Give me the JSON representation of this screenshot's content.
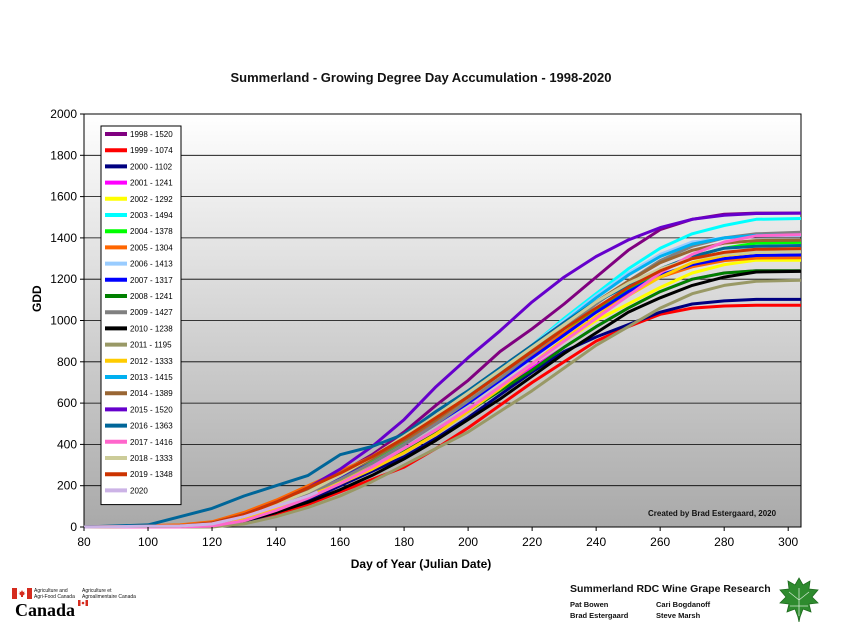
{
  "chart_data": {
    "type": "line",
    "title": "Summerland - Growing Degree Day Accumulation - 1998-2020",
    "xlabel": "Day of Year (Julian Date)",
    "ylabel": "GDD",
    "xlim": [
      80,
      304
    ],
    "ylim": [
      0,
      2000
    ],
    "xticks": [
      80,
      100,
      120,
      140,
      160,
      180,
      200,
      220,
      240,
      260,
      280,
      300
    ],
    "yticks": [
      0,
      200,
      400,
      600,
      800,
      1000,
      1200,
      1400,
      1600,
      1800,
      2000
    ],
    "grid": "horizontal",
    "legend": "top-left",
    "series": [
      {
        "name": "1998 - 1520",
        "color": "#800080",
        "x": [
          80,
          110,
          120,
          130,
          140,
          150,
          160,
          170,
          180,
          190,
          200,
          210,
          220,
          230,
          240,
          250,
          260,
          270,
          280,
          290,
          304
        ],
        "y": [
          0,
          5,
          15,
          55,
          110,
          170,
          260,
          350,
          460,
          590,
          710,
          850,
          960,
          1080,
          1210,
          1340,
          1440,
          1490,
          1515,
          1520,
          1520
        ]
      },
      {
        "name": "1999 - 1074",
        "color": "#ff0000",
        "x": [
          80,
          110,
          120,
          130,
          140,
          150,
          160,
          170,
          180,
          190,
          200,
          210,
          220,
          230,
          240,
          250,
          260,
          270,
          280,
          290,
          304
        ],
        "y": [
          0,
          0,
          5,
          25,
          60,
          110,
          170,
          230,
          290,
          380,
          480,
          590,
          700,
          800,
          900,
          970,
          1030,
          1060,
          1070,
          1074,
          1074
        ]
      },
      {
        "name": "2000 - 1102",
        "color": "#000080",
        "x": [
          80,
          110,
          120,
          130,
          140,
          150,
          160,
          170,
          180,
          190,
          200,
          210,
          220,
          230,
          240,
          250,
          260,
          270,
          280,
          290,
          304
        ],
        "y": [
          0,
          0,
          5,
          25,
          70,
          130,
          200,
          270,
          340,
          430,
          530,
          640,
          750,
          850,
          920,
          980,
          1040,
          1080,
          1095,
          1102,
          1102
        ]
      },
      {
        "name": "2001 - 1241",
        "color": "#ff00ff",
        "x": [
          80,
          110,
          120,
          130,
          140,
          150,
          160,
          170,
          180,
          190,
          200,
          210,
          220,
          230,
          240,
          250,
          260,
          270,
          280,
          290,
          304
        ],
        "y": [
          0,
          5,
          10,
          40,
          90,
          150,
          210,
          290,
          380,
          470,
          570,
          670,
          770,
          870,
          970,
          1060,
          1140,
          1200,
          1230,
          1241,
          1241
        ]
      },
      {
        "name": "2002 - 1292",
        "color": "#ffff00",
        "x": [
          80,
          110,
          120,
          130,
          140,
          150,
          160,
          170,
          180,
          190,
          200,
          210,
          220,
          230,
          240,
          250,
          260,
          270,
          280,
          290,
          304
        ],
        "y": [
          0,
          5,
          12,
          45,
          100,
          160,
          220,
          290,
          370,
          460,
          560,
          670,
          790,
          900,
          1000,
          1080,
          1160,
          1230,
          1270,
          1292,
          1292
        ]
      },
      {
        "name": "2003 - 1494",
        "color": "#00ffff",
        "x": [
          80,
          110,
          120,
          130,
          140,
          150,
          160,
          170,
          180,
          190,
          200,
          210,
          220,
          230,
          240,
          250,
          260,
          270,
          280,
          290,
          304
        ],
        "y": [
          0,
          5,
          20,
          60,
          120,
          180,
          250,
          330,
          420,
          520,
          630,
          750,
          880,
          1010,
          1130,
          1250,
          1350,
          1420,
          1460,
          1490,
          1494
        ]
      },
      {
        "name": "2004 - 1378",
        "color": "#00ff00",
        "x": [
          80,
          110,
          120,
          130,
          140,
          150,
          160,
          170,
          180,
          190,
          200,
          210,
          220,
          230,
          240,
          250,
          260,
          270,
          280,
          290,
          304
        ],
        "y": [
          0,
          5,
          15,
          55,
          110,
          170,
          240,
          320,
          410,
          510,
          610,
          720,
          830,
          940,
          1050,
          1150,
          1240,
          1310,
          1350,
          1375,
          1378
        ]
      },
      {
        "name": "2005 - 1304",
        "color": "#ff6600",
        "x": [
          80,
          110,
          120,
          130,
          140,
          150,
          160,
          170,
          180,
          190,
          200,
          210,
          220,
          230,
          240,
          250,
          260,
          270,
          280,
          290,
          304
        ],
        "y": [
          0,
          10,
          25,
          70,
          130,
          200,
          270,
          340,
          420,
          510,
          610,
          720,
          830,
          940,
          1040,
          1130,
          1210,
          1260,
          1290,
          1302,
          1304
        ]
      },
      {
        "name": "2006 - 1413",
        "color": "#99ccff",
        "x": [
          80,
          110,
          120,
          130,
          140,
          150,
          160,
          170,
          180,
          190,
          200,
          210,
          220,
          230,
          240,
          250,
          260,
          270,
          280,
          290,
          304
        ],
        "y": [
          0,
          5,
          15,
          50,
          110,
          180,
          250,
          330,
          420,
          530,
          640,
          760,
          880,
          1000,
          1120,
          1230,
          1320,
          1380,
          1400,
          1410,
          1413
        ]
      },
      {
        "name": "2007 - 1317",
        "color": "#0000ff",
        "x": [
          80,
          110,
          120,
          130,
          140,
          150,
          160,
          170,
          180,
          190,
          200,
          210,
          220,
          230,
          240,
          250,
          260,
          270,
          280,
          290,
          304
        ],
        "y": [
          0,
          5,
          15,
          55,
          110,
          170,
          240,
          310,
          400,
          500,
          600,
          710,
          820,
          930,
          1040,
          1140,
          1220,
          1270,
          1300,
          1315,
          1317
        ]
      },
      {
        "name": "2008 - 1241",
        "color": "#008000",
        "x": [
          80,
          110,
          120,
          130,
          140,
          150,
          160,
          170,
          180,
          190,
          200,
          210,
          220,
          230,
          240,
          250,
          260,
          270,
          280,
          290,
          304
        ],
        "y": [
          0,
          0,
          5,
          30,
          80,
          140,
          210,
          290,
          370,
          460,
          560,
          660,
          760,
          870,
          970,
          1060,
          1140,
          1200,
          1230,
          1241,
          1241
        ]
      },
      {
        "name": "2009 - 1427",
        "color": "#808080",
        "x": [
          80,
          110,
          120,
          130,
          140,
          150,
          160,
          170,
          180,
          190,
          200,
          210,
          220,
          230,
          240,
          250,
          260,
          270,
          280,
          290,
          304
        ],
        "y": [
          0,
          5,
          15,
          50,
          100,
          160,
          230,
          310,
          400,
          500,
          610,
          720,
          840,
          960,
          1080,
          1190,
          1290,
          1360,
          1400,
          1420,
          1427
        ]
      },
      {
        "name": "2010 - 1238",
        "color": "#000000",
        "x": [
          80,
          110,
          120,
          130,
          140,
          150,
          160,
          170,
          180,
          190,
          200,
          210,
          220,
          230,
          240,
          250,
          260,
          270,
          280,
          290,
          304
        ],
        "y": [
          0,
          0,
          5,
          30,
          70,
          120,
          180,
          250,
          330,
          420,
          520,
          620,
          730,
          840,
          940,
          1040,
          1110,
          1170,
          1210,
          1235,
          1238
        ]
      },
      {
        "name": "2011 - 1195",
        "color": "#999966",
        "x": [
          80,
          110,
          120,
          130,
          140,
          150,
          160,
          170,
          180,
          190,
          200,
          210,
          220,
          230,
          240,
          250,
          260,
          270,
          280,
          290,
          304
        ],
        "y": [
          0,
          0,
          0,
          15,
          50,
          95,
          150,
          220,
          300,
          380,
          460,
          560,
          660,
          770,
          880,
          970,
          1060,
          1130,
          1170,
          1190,
          1195
        ]
      },
      {
        "name": "2012 - 1333",
        "color": "#ffcc00",
        "x": [
          80,
          110,
          120,
          130,
          140,
          150,
          160,
          170,
          180,
          190,
          200,
          210,
          220,
          230,
          240,
          250,
          260,
          270,
          280,
          290,
          304
        ],
        "y": [
          0,
          5,
          10,
          40,
          90,
          150,
          210,
          280,
          360,
          450,
          560,
          670,
          790,
          910,
          1020,
          1120,
          1210,
          1280,
          1315,
          1330,
          1333
        ]
      },
      {
        "name": "2013 - 1415",
        "color": "#00b0f0",
        "x": [
          80,
          110,
          120,
          130,
          140,
          150,
          160,
          170,
          180,
          190,
          200,
          210,
          220,
          230,
          240,
          250,
          260,
          270,
          280,
          290,
          304
        ],
        "y": [
          0,
          5,
          20,
          60,
          120,
          190,
          260,
          340,
          430,
          530,
          640,
          750,
          870,
          990,
          1110,
          1220,
          1310,
          1370,
          1400,
          1412,
          1415
        ]
      },
      {
        "name": "2014 - 1389",
        "color": "#996633",
        "x": [
          80,
          110,
          120,
          130,
          140,
          150,
          160,
          170,
          180,
          190,
          200,
          210,
          220,
          230,
          240,
          250,
          260,
          270,
          280,
          290,
          304
        ],
        "y": [
          0,
          5,
          15,
          50,
          110,
          180,
          250,
          330,
          420,
          520,
          630,
          740,
          860,
          980,
          1090,
          1190,
          1280,
          1340,
          1375,
          1387,
          1389
        ]
      },
      {
        "name": "2015 - 1520",
        "color": "#6600cc",
        "x": [
          80,
          110,
          120,
          130,
          140,
          150,
          160,
          170,
          180,
          190,
          200,
          210,
          220,
          230,
          240,
          250,
          260,
          270,
          280,
          290,
          304
        ],
        "y": [
          0,
          5,
          15,
          60,
          120,
          190,
          280,
          390,
          520,
          680,
          820,
          950,
          1090,
          1210,
          1310,
          1390,
          1450,
          1490,
          1510,
          1518,
          1520
        ]
      },
      {
        "name": "2016 - 1363",
        "color": "#006699",
        "x": [
          80,
          100,
          110,
          120,
          130,
          140,
          150,
          160,
          170,
          180,
          190,
          200,
          210,
          220,
          230,
          240,
          250,
          260,
          270,
          280,
          290,
          304
        ],
        "y": [
          0,
          10,
          50,
          90,
          150,
          200,
          250,
          350,
          390,
          450,
          560,
          660,
          770,
          880,
          990,
          1090,
          1170,
          1250,
          1310,
          1350,
          1360,
          1363
        ]
      },
      {
        "name": "2017 - 1416",
        "color": "#ff66cc",
        "x": [
          80,
          110,
          120,
          130,
          140,
          150,
          160,
          170,
          180,
          190,
          200,
          210,
          220,
          230,
          240,
          250,
          260,
          270,
          280,
          290,
          304
        ],
        "y": [
          0,
          0,
          5,
          30,
          80,
          140,
          210,
          290,
          380,
          470,
          570,
          680,
          790,
          900,
          1010,
          1120,
          1230,
          1320,
          1380,
          1410,
          1416
        ]
      },
      {
        "name": "2018 - 1333",
        "color": "#cccc99",
        "x": [
          80,
          110,
          120,
          130,
          140,
          150,
          160,
          170,
          180,
          190,
          200,
          210,
          220,
          230,
          240,
          250,
          260,
          270,
          280,
          290,
          304
        ],
        "y": [
          0,
          5,
          15,
          55,
          110,
          170,
          250,
          340,
          440,
          540,
          650,
          760,
          870,
          980,
          1090,
          1180,
          1250,
          1300,
          1320,
          1330,
          1333
        ]
      },
      {
        "name": "2019 - 1348",
        "color": "#cc3300",
        "x": [
          80,
          110,
          120,
          130,
          140,
          150,
          160,
          170,
          180,
          190,
          200,
          210,
          220,
          230,
          240,
          250,
          260,
          270,
          280,
          290,
          304
        ],
        "y": [
          0,
          5,
          20,
          60,
          120,
          190,
          260,
          340,
          430,
          530,
          630,
          740,
          850,
          960,
          1060,
          1160,
          1240,
          1300,
          1330,
          1345,
          1348
        ]
      },
      {
        "name": "2020",
        "color": "#ccb3e6",
        "x": [
          80,
          110,
          120,
          130,
          140,
          150,
          153
        ],
        "y": [
          0,
          5,
          15,
          50,
          100,
          150,
          170
        ]
      }
    ],
    "annotation": "Created by Brad Estergaard, 2020"
  },
  "footer": {
    "agri_en_line1": "Agriculture and",
    "agri_en_line2": "Agri-Food Canada",
    "agri_fr_line1": "Agriculture et",
    "agri_fr_line2": "Agroalimentaire Canada",
    "wordmark": "Canada",
    "program_title": "Summerland RDC Wine Grape Research",
    "people": [
      "Pat Bowen",
      "Cari Bogdanoff",
      "Brad Estergaard",
      "Steve Marsh"
    ]
  },
  "colors": {
    "canada_red": "#d52b1e",
    "leaf_green": "#2e8b2e"
  }
}
